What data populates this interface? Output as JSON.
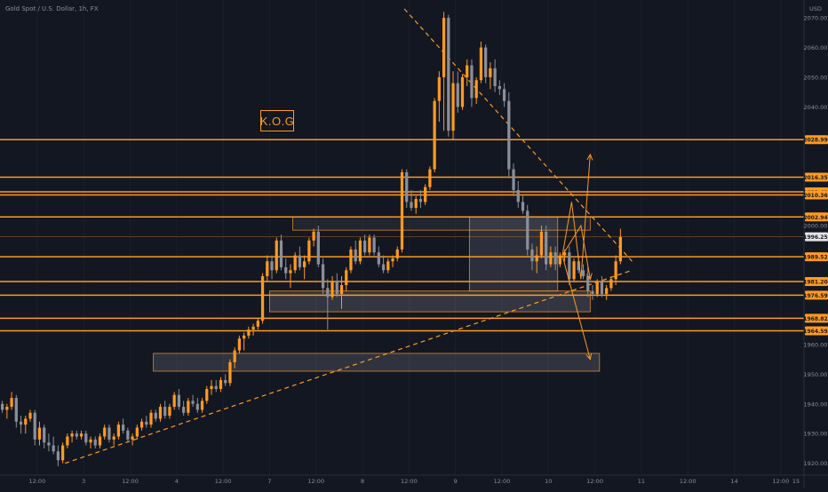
{
  "header": {
    "symbol_text": "Gold Spot / U.S. Dollar, 1h, FX"
  },
  "badge": {
    "label": "K.O.G"
  },
  "colors": {
    "background": "#131722",
    "up": "#ff9a1f",
    "down": "#8a8f99",
    "level": "#ff9a1f",
    "axis_text": "#8a8f9c",
    "price_tag_text": "#131722",
    "current_tag_bg": "#e3e3e3"
  },
  "chart_data": {
    "type": "candlestick",
    "y_axis": {
      "unit_label": "USD",
      "ylim": [
        1916,
        2076
      ],
      "ticks": [
        {
          "value": 2070,
          "label": "2070.00"
        },
        {
          "value": 2060,
          "label": "2060.00"
        },
        {
          "value": 2050,
          "label": "2050.00"
        },
        {
          "value": 2040,
          "label": "2040.00"
        },
        {
          "value": 2000,
          "label": "2000.00"
        },
        {
          "value": 1960,
          "label": "1960.00"
        },
        {
          "value": 1950,
          "label": "1950.00"
        },
        {
          "value": 1940,
          "label": "1940.00"
        },
        {
          "value": 1930,
          "label": "1930.00"
        },
        {
          "value": 1920,
          "label": "1920.00"
        }
      ]
    },
    "x_axis": {
      "xlim": [
        0,
        173
      ],
      "ticks": [
        {
          "bar": 8,
          "label": "12:00"
        },
        {
          "bar": 18,
          "label": "3"
        },
        {
          "bar": 28,
          "label": "12:00"
        },
        {
          "bar": 38,
          "label": "4"
        },
        {
          "bar": 48,
          "label": "12:00"
        },
        {
          "bar": 58,
          "label": "7"
        },
        {
          "bar": 68,
          "label": "12:00"
        },
        {
          "bar": 78,
          "label": "8"
        },
        {
          "bar": 88,
          "label": "12:00"
        },
        {
          "bar": 98,
          "label": "9"
        },
        {
          "bar": 108,
          "label": "12:00"
        },
        {
          "bar": 118,
          "label": "10"
        },
        {
          "bar": 128,
          "label": "12:00"
        },
        {
          "bar": 138,
          "label": "11"
        },
        {
          "bar": 148,
          "label": "12:00"
        },
        {
          "bar": 158,
          "label": "14"
        },
        {
          "bar": 168,
          "label": "12:00"
        },
        {
          "bar": 173,
          "label": "15"
        }
      ]
    },
    "candles": [
      [
        1940,
        1941,
        1937,
        1938
      ],
      [
        1938,
        1940,
        1935,
        1939
      ],
      [
        1939,
        1944,
        1938,
        1942
      ],
      [
        1942,
        1943,
        1932,
        1934
      ],
      [
        1934,
        1936,
        1930,
        1933
      ],
      [
        1933,
        1936,
        1930,
        1935
      ],
      [
        1935,
        1938,
        1934,
        1937
      ],
      [
        1937,
        1938,
        1926,
        1928
      ],
      [
        1928,
        1934,
        1926,
        1932
      ],
      [
        1932,
        1933,
        1925,
        1927
      ],
      [
        1927,
        1930,
        1924,
        1926
      ],
      [
        1926,
        1929,
        1923,
        1924
      ],
      [
        1924,
        1926,
        1919,
        1921
      ],
      [
        1921,
        1927,
        1920,
        1926
      ],
      [
        1926,
        1930,
        1925,
        1929
      ],
      [
        1929,
        1931,
        1927,
        1930
      ],
      [
        1930,
        1931,
        1928,
        1929
      ],
      [
        1929,
        1931,
        1928,
        1930
      ],
      [
        1930,
        1931,
        1926,
        1927
      ],
      [
        1927,
        1929,
        1925,
        1928
      ],
      [
        1928,
        1929,
        1925,
        1926
      ],
      [
        1926,
        1930,
        1925,
        1929
      ],
      [
        1929,
        1933,
        1928,
        1932
      ],
      [
        1932,
        1933,
        1927,
        1928
      ],
      [
        1928,
        1930,
        1926,
        1929
      ],
      [
        1929,
        1934,
        1928,
        1933
      ],
      [
        1933,
        1935,
        1930,
        1931
      ],
      [
        1931,
        1932,
        1927,
        1928
      ],
      [
        1928,
        1930,
        1926,
        1929
      ],
      [
        1929,
        1933,
        1928,
        1932
      ],
      [
        1932,
        1935,
        1931,
        1934
      ],
      [
        1934,
        1936,
        1932,
        1933
      ],
      [
        1933,
        1938,
        1932,
        1937
      ],
      [
        1937,
        1938,
        1934,
        1935
      ],
      [
        1935,
        1940,
        1934,
        1939
      ],
      [
        1939,
        1941,
        1935,
        1936
      ],
      [
        1936,
        1940,
        1935,
        1939
      ],
      [
        1939,
        1944,
        1938,
        1943
      ],
      [
        1943,
        1945,
        1938,
        1939
      ],
      [
        1939,
        1941,
        1936,
        1937
      ],
      [
        1937,
        1942,
        1936,
        1941
      ],
      [
        1941,
        1943,
        1939,
        1940
      ],
      [
        1940,
        1942,
        1937,
        1938
      ],
      [
        1938,
        1942,
        1937,
        1941
      ],
      [
        1941,
        1946,
        1940,
        1945
      ],
      [
        1945,
        1948,
        1943,
        1946
      ],
      [
        1946,
        1948,
        1944,
        1945
      ],
      [
        1945,
        1949,
        1944,
        1948
      ],
      [
        1948,
        1950,
        1946,
        1947
      ],
      [
        1947,
        1955,
        1946,
        1954
      ],
      [
        1954,
        1959,
        1952,
        1958
      ],
      [
        1958,
        1963,
        1957,
        1962
      ],
      [
        1962,
        1964,
        1958,
        1963
      ],
      [
        1963,
        1966,
        1962,
        1965
      ],
      [
        1965,
        1967,
        1963,
        1966
      ],
      [
        1966,
        1969,
        1965,
        1968
      ],
      [
        1968,
        1984,
        1967,
        1983
      ],
      [
        1983,
        1990,
        1981,
        1988
      ],
      [
        1988,
        1990,
        1982,
        1985
      ],
      [
        1985,
        1996,
        1984,
        1995
      ],
      [
        1995,
        1997,
        1985,
        1986
      ],
      [
        1986,
        1989,
        1982,
        1984
      ],
      [
        1984,
        1987,
        1979,
        1985
      ],
      [
        1985,
        1991,
        1984,
        1990
      ],
      [
        1990,
        1993,
        1985,
        1986
      ],
      [
        1986,
        1990,
        1982,
        1988
      ],
      [
        1988,
        1996,
        1987,
        1995
      ],
      [
        1995,
        1999,
        1993,
        1998
      ],
      [
        1998,
        2000,
        1986,
        1987
      ],
      [
        1987,
        1989,
        1977,
        1979
      ],
      [
        1979,
        1982,
        1965,
        1976
      ],
      [
        1976,
        1983,
        1975,
        1981
      ],
      [
        1981,
        1984,
        1976,
        1977
      ],
      [
        1977,
        1983,
        1972,
        1980
      ],
      [
        1980,
        1986,
        1978,
        1985
      ],
      [
        1985,
        1993,
        1984,
        1992
      ],
      [
        1992,
        1995,
        1987,
        1988
      ],
      [
        1988,
        1996,
        1987,
        1995
      ],
      [
        1995,
        1997,
        1990,
        1991
      ],
      [
        1991,
        1997,
        1990,
        1996
      ],
      [
        1996,
        1997,
        1990,
        1991
      ],
      [
        1991,
        1993,
        1986,
        1987
      ],
      [
        1987,
        1990,
        1984,
        1985
      ],
      [
        1985,
        1989,
        1984,
        1988
      ],
      [
        1988,
        1990,
        1986,
        1989
      ],
      [
        1989,
        1993,
        1988,
        1992
      ],
      [
        1992,
        2019,
        1991,
        2018
      ],
      [
        2018,
        2019,
        2006,
        2008
      ],
      [
        2008,
        2012,
        2005,
        2006
      ],
      [
        2006,
        2010,
        2004,
        2009
      ],
      [
        2009,
        2012,
        2006,
        2008
      ],
      [
        2008,
        2014,
        2007,
        2013
      ],
      [
        2013,
        2020,
        2012,
        2019
      ],
      [
        2019,
        2043,
        2018,
        2042
      ],
      [
        2042,
        2052,
        2035,
        2050
      ],
      [
        2050,
        2072,
        2032,
        2070
      ],
      [
        2070,
        2071,
        2030,
        2032
      ],
      [
        2032,
        2052,
        2029,
        2048
      ],
      [
        2048,
        2052,
        2038,
        2040
      ],
      [
        2040,
        2051,
        2039,
        2050
      ],
      [
        2050,
        2056,
        2047,
        2054
      ],
      [
        2054,
        2056,
        2040,
        2043
      ],
      [
        2043,
        2050,
        2041,
        2049
      ],
      [
        2049,
        2062,
        2048,
        2060
      ],
      [
        2060,
        2061,
        2048,
        2050
      ],
      [
        2050,
        2055,
        2046,
        2053
      ],
      [
        2053,
        2056,
        2045,
        2047
      ],
      [
        2047,
        2049,
        2044,
        2046
      ],
      [
        2046,
        2048,
        2040,
        2042
      ],
      [
        2042,
        2045,
        2016,
        2019
      ],
      [
        2019,
        2021,
        2010,
        2012
      ],
      [
        2012,
        2015,
        2006,
        2008
      ],
      [
        2008,
        2010,
        2004,
        2005
      ],
      [
        2005,
        2007,
        1990,
        1992
      ],
      [
        1992,
        1994,
        1985,
        1988
      ],
      [
        1988,
        1993,
        1984,
        1990
      ],
      [
        1990,
        2000,
        1989,
        1998
      ],
      [
        1998,
        2000,
        1985,
        1987
      ],
      [
        1987,
        1993,
        1986,
        1991
      ],
      [
        1991,
        1993,
        1985,
        1987
      ],
      [
        1987,
        1991,
        1986,
        1990
      ],
      [
        1990,
        1992,
        1988,
        1991
      ],
      [
        1991,
        1993,
        1980,
        1982
      ],
      [
        1982,
        1989,
        1981,
        1988
      ],
      [
        1988,
        1990,
        1984,
        1985
      ],
      [
        1985,
        1987,
        1982,
        1983
      ],
      [
        1983,
        1986,
        1976,
        1978
      ],
      [
        1978,
        1980,
        1975,
        1977
      ],
      [
        1977,
        1982,
        1976,
        1981
      ],
      [
        1981,
        1983,
        1976,
        1977
      ],
      [
        1977,
        1980,
        1975,
        1979
      ],
      [
        1979,
        1983,
        1978,
        1982
      ],
      [
        1982,
        1990,
        1980,
        1988
      ],
      [
        1988,
        1999,
        1987,
        1996.25
      ]
    ],
    "levels": [
      {
        "value": 2028.99,
        "label": "2028.99"
      },
      {
        "value": 2011.41,
        "label": "2011.41"
      },
      {
        "value": 2016.35,
        "label": "2016.35"
      },
      {
        "value": 2010.36,
        "label": "2010.36"
      },
      {
        "value": 2002.94,
        "label": "2002.94"
      },
      {
        "value": 1989.52,
        "label": "1989.52"
      },
      {
        "value": 1981.2,
        "label": "1981.20"
      },
      {
        "value": 1976.59,
        "label": "1976.59"
      },
      {
        "value": 1968.82,
        "label": "1968.82"
      },
      {
        "value": 1964.59,
        "label": "1964.59"
      }
    ],
    "current_price": {
      "value": 1996.25,
      "label": "1996.25"
    }
  }
}
